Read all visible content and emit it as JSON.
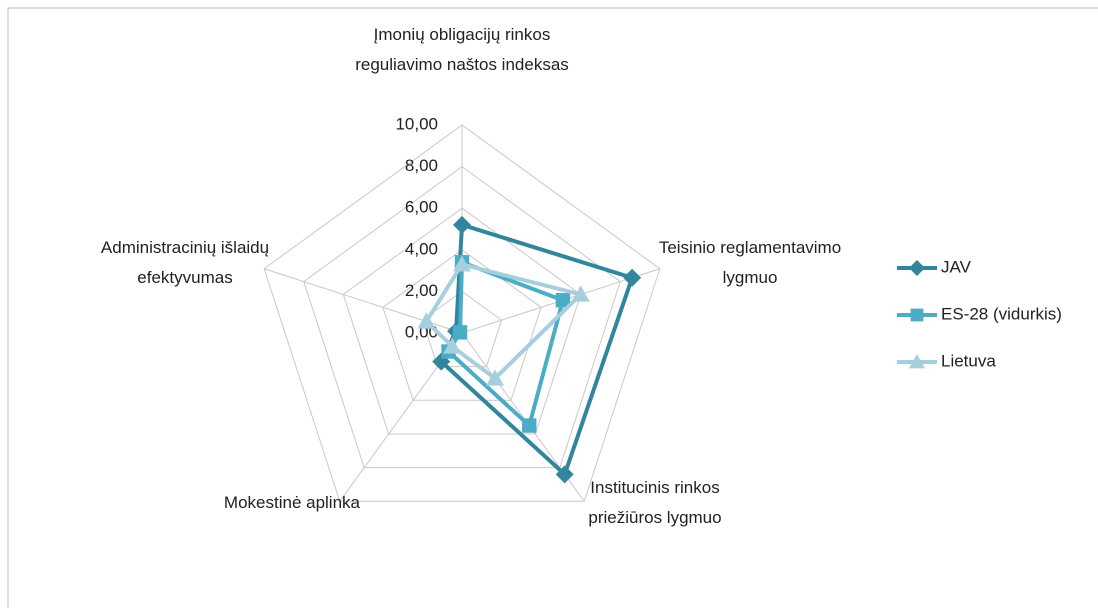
{
  "chart_data": {
    "type": "radar",
    "categories": [
      "Įmonių obligacijų rinkos reguliavimo naštos indeksas",
      "Teisinio reglamentavimo lygmuo",
      "Institucinis rinkos priežiūros lygmuo",
      "Mokestinė aplinka",
      "Administracinių išlaidų efektyvumas"
    ],
    "rlim": [
      0,
      10
    ],
    "rticks": [
      {
        "value": 0,
        "label": "0,00"
      },
      {
        "value": 2,
        "label": "2,00"
      },
      {
        "value": 4,
        "label": "4,00"
      },
      {
        "value": 6,
        "label": "6,00"
      },
      {
        "value": 8,
        "label": "8,00"
      },
      {
        "value": 10,
        "label": "10,00"
      }
    ],
    "grid": true,
    "legend": "right",
    "series": [
      {
        "name": "JAV",
        "color": "#31859c",
        "marker": "diamond",
        "values": [
          5.2,
          8.6,
          8.4,
          1.7,
          0.3
        ]
      },
      {
        "name": "ES-28 (vidurkis)",
        "color": "#4bacc6",
        "marker": "square",
        "values": [
          3.4,
          5.1,
          5.5,
          1.1,
          0.1
        ]
      },
      {
        "name": "Lietuva",
        "color": "#a5cfdc",
        "marker": "triangle",
        "values": [
          3.3,
          6.0,
          2.7,
          0.8,
          1.8
        ]
      }
    ]
  }
}
